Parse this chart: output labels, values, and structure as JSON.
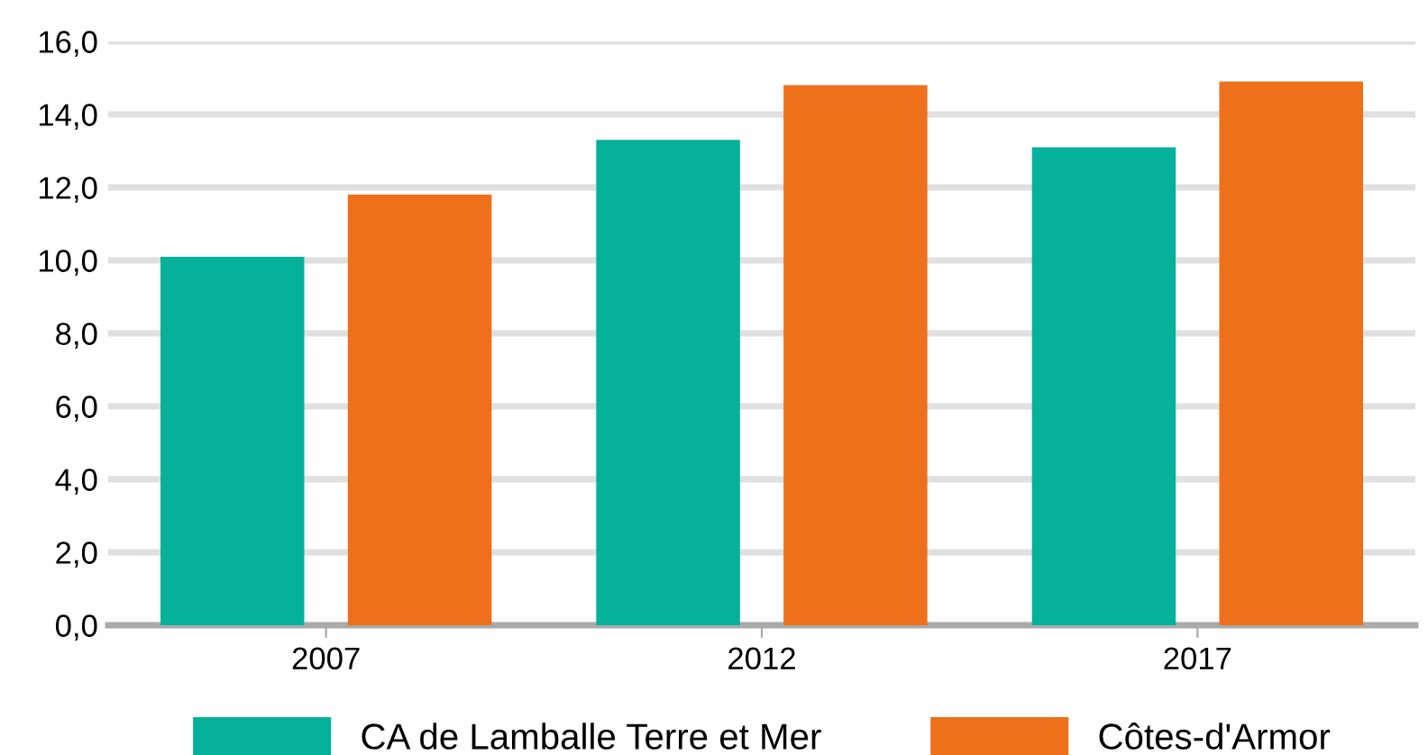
{
  "chart_data": {
    "type": "bar",
    "categories": [
      "2007",
      "2012",
      "2017"
    ],
    "series": [
      {
        "name": "CA de Lamballe Terre et Mer",
        "color": "#06b19c",
        "values": [
          10.1,
          13.3,
          13.1
        ]
      },
      {
        "name": "Côtes-d'Armor",
        "color": "#ee701b",
        "values": [
          11.8,
          14.8,
          14.9
        ]
      }
    ],
    "ylim": [
      0,
      16
    ],
    "yticks": [
      {
        "value": 0,
        "label": "0,0"
      },
      {
        "value": 2,
        "label": "2,0"
      },
      {
        "value": 4,
        "label": "4,0"
      },
      {
        "value": 6,
        "label": "6,0"
      },
      {
        "value": 8,
        "label": "8,0"
      },
      {
        "value": 10,
        "label": "10,0"
      },
      {
        "value": 12,
        "label": "12,0"
      },
      {
        "value": 14,
        "label": "14,0"
      },
      {
        "value": 16,
        "label": "16,0"
      }
    ],
    "grid": "y",
    "legend": "bottom"
  }
}
